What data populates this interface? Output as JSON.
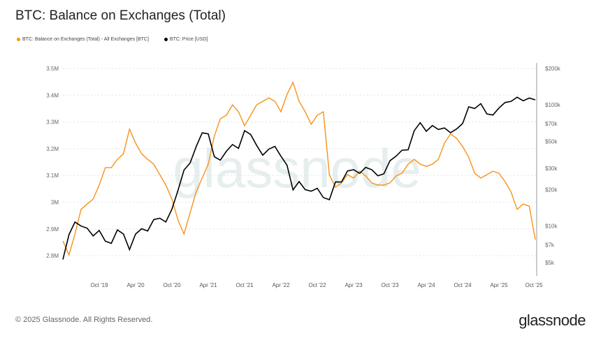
{
  "title": "BTC: Balance on Exchanges (Total)",
  "footer": "© 2025 Glassnode. All Rights Reserved.",
  "brand": "glassnode",
  "watermark": "glassnode",
  "chart_data": {
    "type": "line",
    "title": "BTC: Balance on Exchanges (Total)",
    "x_start": "2019-04",
    "x_end": "2025-10",
    "x_step": "monthly",
    "x_ticks": [
      "Oct '19",
      "Apr '20",
      "Oct '20",
      "Apr '21",
      "Oct '21",
      "Apr '22",
      "Oct '22",
      "Apr '23",
      "Oct '23",
      "Apr '24",
      "Oct '24",
      "Apr '25",
      "Oct '25"
    ],
    "y_left": {
      "ticks": [
        "3.5M",
        "3.4M",
        "3.3M",
        "3.2M",
        "3.1M",
        "3M",
        "2.9M",
        "2.8M"
      ],
      "range": [
        2.76,
        3.5
      ],
      "unit": "M BTC"
    },
    "y_right": {
      "scale": "log",
      "ticks": [
        "$200k",
        "$100k",
        "$70k",
        "$50k",
        "$30k",
        "$20k",
        "$10k",
        "$7k",
        "$5k"
      ],
      "tick_values": [
        200000,
        100000,
        70000,
        50000,
        30000,
        20000,
        10000,
        7000,
        5000
      ],
      "range": [
        4300,
        200000
      ]
    },
    "grid": "horizontal dotted",
    "legend_placement": "top-left",
    "series": [
      {
        "name": "BTC: Balance on Exchanges (Total) - All Exchanges [BTC]",
        "color": "#f7931a",
        "axis": "left",
        "values": [
          2.855,
          2.803,
          2.881,
          2.973,
          2.993,
          3.012,
          3.064,
          3.129,
          3.129,
          3.16,
          3.181,
          3.273,
          3.221,
          3.181,
          3.16,
          3.142,
          3.103,
          3.064,
          3.012,
          2.933,
          2.881,
          2.96,
          3.038,
          3.09,
          3.142,
          3.247,
          3.312,
          3.325,
          3.364,
          3.338,
          3.286,
          3.325,
          3.364,
          3.377,
          3.39,
          3.377,
          3.338,
          3.403,
          3.448,
          3.377,
          3.338,
          3.291,
          3.325,
          3.338,
          3.103,
          3.056,
          3.072,
          3.103,
          3.09,
          3.116,
          3.098,
          3.072,
          3.064,
          3.064,
          3.072,
          3.098,
          3.108,
          3.142,
          3.16,
          3.142,
          3.134,
          3.142,
          3.16,
          3.221,
          3.255,
          3.239,
          3.208,
          3.168,
          3.108,
          3.09,
          3.103,
          3.116,
          3.108,
          3.077,
          3.038,
          2.973,
          2.993,
          2.985,
          2.86
        ]
      },
      {
        "name": "BTC: Price [USD]",
        "color": "#000000",
        "axis": "right",
        "values": [
          5300,
          8500,
          10800,
          10000,
          9600,
          8300,
          9200,
          7500,
          7200,
          9300,
          8600,
          6400,
          8600,
          9500,
          9100,
          11300,
          11600,
          10800,
          13800,
          19700,
          29000,
          33100,
          45200,
          58800,
          57700,
          37300,
          35000,
          41500,
          47100,
          43800,
          61300,
          57000,
          46300,
          38500,
          43200,
          45500,
          37700,
          31800,
          19900,
          23300,
          20000,
          19400,
          20500,
          17200,
          16500,
          23100,
          23100,
          28500,
          29200,
          27200,
          30500,
          29200,
          26000,
          27000,
          34600,
          37700,
          42300,
          42600,
          61200,
          71300,
          60600,
          67500,
          62700,
          64600,
          59000,
          63300,
          70200,
          96400,
          93400,
          102400,
          84300,
          82500,
          94200,
          104600,
          107100,
          115700,
          108200,
          114000,
          110000
        ]
      }
    ]
  }
}
